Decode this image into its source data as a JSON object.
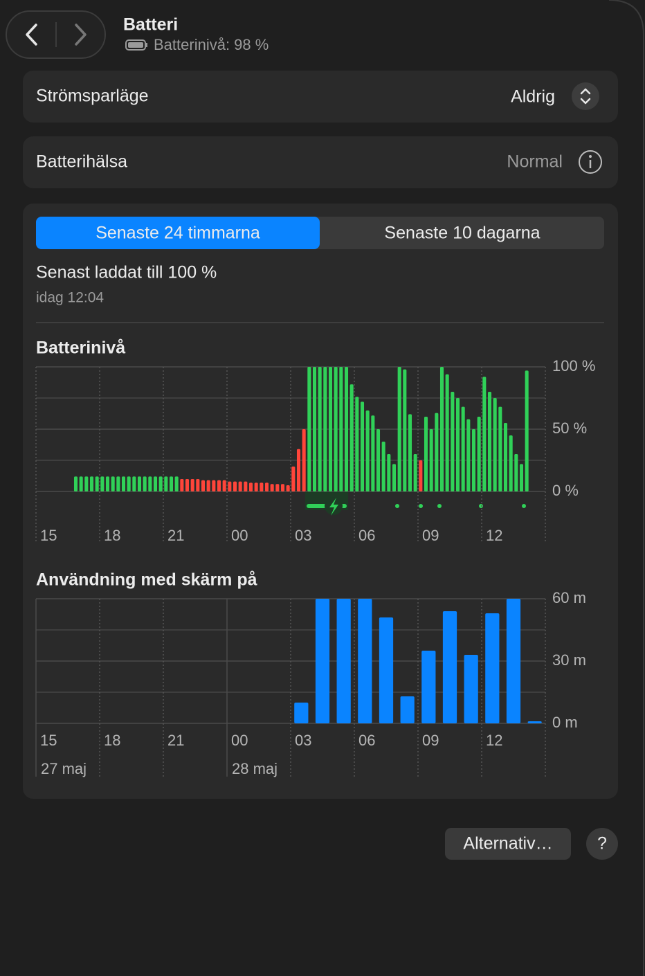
{
  "header": {
    "title": "Batteri",
    "subtitle": "Batterinivå: 98 %"
  },
  "settings": [
    {
      "label": "Strömsparläge",
      "value": "Aldrig"
    },
    {
      "label": "Batterihälsa",
      "value": "Normal"
    }
  ],
  "tabs": {
    "items": [
      "Senaste 24 timmarna",
      "Senaste 10 dagarna"
    ],
    "active": 0
  },
  "last_charge": {
    "text": "Senast laddat till 100 %",
    "time": "idag 12:04"
  },
  "chart_data": [
    {
      "type": "bar",
      "title": "Batterinivå",
      "x_labels": [
        "15",
        "18",
        "21",
        "00",
        "03",
        "06",
        "09",
        "12"
      ],
      "date_labels": [
        null,
        null,
        null,
        null,
        null,
        null,
        null,
        null
      ],
      "values": [
        null,
        null,
        null,
        null,
        null,
        null,
        null,
        12,
        12,
        12,
        12,
        12,
        12,
        12,
        12,
        12,
        12,
        12,
        12,
        12,
        12,
        12,
        12,
        12,
        12,
        12,
        12,
        10,
        10,
        10,
        10,
        9,
        9,
        9,
        9,
        9,
        8,
        8,
        8,
        8,
        7,
        7,
        7,
        7,
        6,
        6,
        6,
        5,
        20,
        34,
        50,
        100,
        100,
        100,
        100,
        100,
        100,
        100,
        100,
        86,
        76,
        72,
        65,
        61,
        50,
        40,
        30,
        22,
        100,
        98,
        62,
        30,
        25,
        60,
        50,
        63,
        100,
        94,
        80,
        75,
        68,
        58,
        50,
        60,
        92,
        80,
        75,
        68,
        55,
        45,
        30,
        22,
        97,
        null,
        null,
        null
      ],
      "bar_colors": [
        null,
        null,
        null,
        null,
        null,
        null,
        null,
        "#30d158",
        "#30d158",
        "#30d158",
        "#30d158",
        "#30d158",
        "#30d158",
        "#30d158",
        "#30d158",
        "#30d158",
        "#30d158",
        "#30d158",
        "#30d158",
        "#30d158",
        "#30d158",
        "#30d158",
        "#30d158",
        "#30d158",
        "#30d158",
        "#30d158",
        "#30d158",
        "#ff453a",
        "#ff453a",
        "#ff453a",
        "#ff453a",
        "#ff453a",
        "#ff453a",
        "#ff453a",
        "#ff453a",
        "#ff453a",
        "#ff453a",
        "#ff453a",
        "#ff453a",
        "#ff453a",
        "#ff453a",
        "#ff453a",
        "#ff453a",
        "#ff453a",
        "#ff453a",
        "#ff453a",
        "#ff453a",
        "#ff453a",
        "#ff453a",
        "#ff453a",
        "#ff453a",
        "#30d158",
        "#30d158",
        "#30d158",
        "#30d158",
        "#30d158",
        "#30d158",
        "#30d158",
        "#30d158",
        "#30d158",
        "#30d158",
        "#30d158",
        "#30d158",
        "#30d158",
        "#30d158",
        "#30d158",
        "#30d158",
        "#30d158",
        "#30d158",
        "#30d158",
        "#30d158",
        "#30d158",
        "#ff453a",
        "#30d158",
        "#30d158",
        "#30d158",
        "#30d158",
        "#30d158",
        "#30d158",
        "#30d158",
        "#30d158",
        "#30d158",
        "#30d158",
        "#30d158",
        "#30d158",
        "#30d158",
        "#30d158",
        "#30d158",
        "#30d158",
        "#30d158",
        "#30d158",
        "#30d158",
        "#30d158",
        null,
        null,
        null
      ],
      "ylim": [
        0,
        100
      ],
      "yticks": [
        {
          "value": 100,
          "label": "100 %"
        },
        {
          "value": 50,
          "label": "50 %"
        },
        {
          "value": 0,
          "label": "0 %"
        }
      ],
      "minor_yticks": [
        25,
        75
      ],
      "grid": true
    },
    {
      "type": "bar",
      "title": "Användning med skärm på",
      "x_labels": [
        "15",
        "18",
        "21",
        "00",
        "03",
        "06",
        "09",
        "12"
      ],
      "date_labels": [
        "27 maj",
        null,
        null,
        "28 maj",
        null,
        null,
        null,
        null
      ],
      "values": [
        null,
        null,
        null,
        null,
        null,
        null,
        null,
        null,
        null,
        null,
        null,
        null,
        10,
        60,
        60,
        60,
        51,
        13,
        35,
        54,
        33,
        53,
        60,
        1
      ],
      "color": "#0a84ff",
      "ylim": [
        0,
        60
      ],
      "yticks": [
        {
          "value": 60,
          "label": "60 m"
        },
        {
          "value": 30,
          "label": "30 m"
        },
        {
          "value": 0,
          "label": "0 m"
        }
      ],
      "minor_yticks": [
        15,
        45
      ],
      "grid": true
    }
  ],
  "buttons": {
    "options": "Alternativ…",
    "help": "?"
  }
}
